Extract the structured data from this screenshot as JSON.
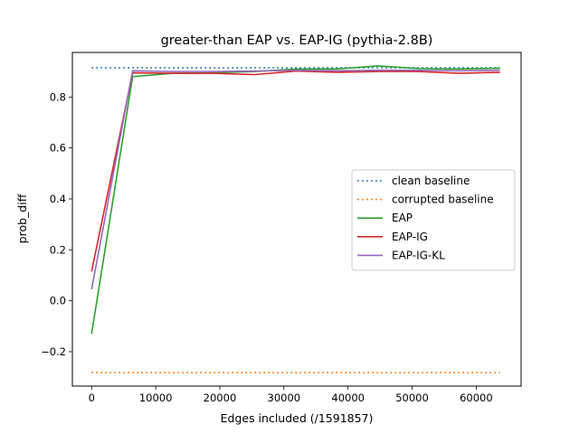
{
  "chart_data": {
    "type": "line",
    "title": "greater-than EAP vs. EAP-IG (pythia-2.8B)",
    "xlabel": "Edges included (/1591857)",
    "ylabel": "prob_diff",
    "xlim": [
      -3000,
      67000
    ],
    "ylim": [
      -0.335,
      0.975
    ],
    "xticks": [
      0,
      10000,
      20000,
      30000,
      40000,
      50000,
      60000
    ],
    "xtick_labels": [
      "0",
      "10000",
      "20000",
      "30000",
      "40000",
      "50000",
      "60000"
    ],
    "yticks": [
      -0.2,
      0.0,
      0.2,
      0.4,
      0.6,
      0.8
    ],
    "ytick_labels": [
      "−0.2",
      "0.0",
      "0.2",
      "0.4",
      "0.6",
      "0.8"
    ],
    "grid": false,
    "legend_position": "center-right",
    "series": [
      {
        "name": "clean baseline",
        "style": "dotted",
        "color": "#1f77b4",
        "x": [
          0,
          63700
        ],
        "y": [
          0.915,
          0.915
        ]
      },
      {
        "name": "corrupted baseline",
        "style": "dotted",
        "color": "#ff7f0e",
        "x": [
          0,
          63700
        ],
        "y": [
          -0.282,
          -0.282
        ]
      },
      {
        "name": "EAP",
        "style": "solid",
        "color": "#2ca02c",
        "x": [
          0,
          6400,
          12700,
          19100,
          25500,
          31900,
          38200,
          44600,
          51000,
          57300,
          63700
        ],
        "y": [
          -0.13,
          0.88,
          0.893,
          0.895,
          0.9,
          0.91,
          0.91,
          0.922,
          0.912,
          0.91,
          0.913
        ]
      },
      {
        "name": "EAP-IG",
        "style": "solid",
        "color": "#d62728",
        "x": [
          0,
          6400,
          12700,
          19100,
          25500,
          31900,
          38200,
          44600,
          51000,
          57300,
          63700
        ],
        "y": [
          0.115,
          0.895,
          0.893,
          0.893,
          0.888,
          0.902,
          0.897,
          0.9,
          0.9,
          0.893,
          0.897
        ]
      },
      {
        "name": "EAP-IG-KL",
        "style": "solid",
        "color": "#9467bd",
        "x": [
          0,
          6400,
          12700,
          19100,
          25500,
          31900,
          38200,
          44600,
          51000,
          57300,
          63700
        ],
        "y": [
          0.045,
          0.903,
          0.9,
          0.9,
          0.902,
          0.905,
          0.903,
          0.905,
          0.905,
          0.903,
          0.905
        ]
      }
    ]
  }
}
